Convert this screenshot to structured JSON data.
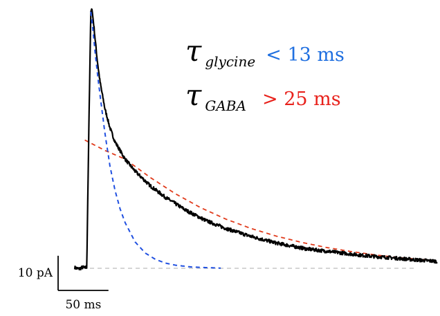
{
  "chart_data": {
    "type": "line",
    "title": "",
    "xlabel": "",
    "ylabel": "",
    "x_units": "ms",
    "y_units": "pA",
    "xlim": [
      0,
      360
    ],
    "ylim": [
      -1,
      77
    ],
    "scale_bars": {
      "x": {
        "value": 50,
        "label": "50 ms"
      },
      "y": {
        "value": 10,
        "label": "10 pA"
      }
    },
    "baseline": {
      "y": 0,
      "x_start": 0,
      "x_end": 340,
      "style": "dashed",
      "color": "#c7c7c7"
    },
    "annotations": [
      {
        "symbol": "τ",
        "subscript": "glycine",
        "text": "< 13 ms",
        "color": "#1f6fe0"
      },
      {
        "symbol": "τ",
        "subscript": "GABA",
        "text": "> 25 ms",
        "color": "#e8211b"
      }
    ],
    "series": [
      {
        "role": "recorded-current",
        "color": "#000000",
        "style": "solid",
        "x": [
          0,
          4,
          8,
          10,
          12,
          14,
          16,
          17,
          19,
          22,
          25,
          30,
          35,
          40,
          50,
          60,
          75,
          90,
          110,
          130,
          150,
          175,
          200,
          230,
          260,
          290,
          320,
          340,
          360
        ],
        "y": [
          0.2,
          -0.2,
          0.3,
          0.1,
          0.4,
          40,
          74,
          75,
          70,
          61,
          54,
          46,
          40.5,
          36.5,
          31.5,
          28,
          23.8,
          20.5,
          16.8,
          13.8,
          11.5,
          9.2,
          7.3,
          5.6,
          4.6,
          3.6,
          2.9,
          2.4,
          2.0
        ]
      },
      {
        "role": "glycine-fit",
        "color": "#1f4fe0",
        "style": "dashed",
        "x": [
          16,
          18,
          20,
          23,
          26,
          30,
          35,
          40,
          45,
          50,
          60,
          70,
          80,
          90,
          100,
          115,
          130,
          145
        ],
        "y": [
          74,
          69,
          63,
          55,
          48,
          39,
          29.5,
          22.5,
          17.2,
          13.2,
          7.6,
          4.4,
          2.6,
          1.5,
          0.9,
          0.4,
          0.2,
          0.05
        ]
      },
      {
        "role": "gaba-fit",
        "color": "#e03a1b",
        "style": "dashed",
        "x": [
          10,
          30,
          50,
          75,
          100,
          125,
          150,
          175,
          200,
          225,
          250,
          275,
          300,
          325,
          360
        ],
        "y": [
          37,
          34,
          31.5,
          26.2,
          21.5,
          17.5,
          14.2,
          11.5,
          9.3,
          7.5,
          6.0,
          4.8,
          3.8,
          3.0,
          2.2
        ]
      }
    ]
  }
}
